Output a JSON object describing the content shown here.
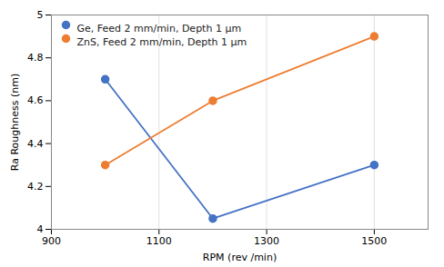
{
  "chart_data": {
    "type": "line",
    "xlabel": "RPM (rev /min)",
    "ylabel": "Ra Roughness (nm)",
    "x": [
      1000,
      1200,
      1500
    ],
    "series": [
      {
        "name": "Ge, Feed 2 mm/min, Depth 1 μm",
        "color": "#4472C4",
        "marker": "circle",
        "line_style": "solid",
        "values": [
          4.7,
          4.05,
          4.3
        ]
      },
      {
        "name": "ZnS, Feed 2 mm/min, Depth 1 μm",
        "color": "#ED7D31",
        "marker": "circle",
        "line_style": "solid",
        "values": [
          4.3,
          4.6,
          4.9
        ]
      }
    ],
    "xlim": [
      900,
      1600
    ],
    "ylim": [
      4.0,
      5.0
    ],
    "xticks": [
      900,
      1100,
      1300,
      1500
    ],
    "yticks": [
      4.0,
      4.2,
      4.4,
      4.6,
      4.8,
      5.0
    ],
    "grid": true,
    "legend": "upper left"
  }
}
